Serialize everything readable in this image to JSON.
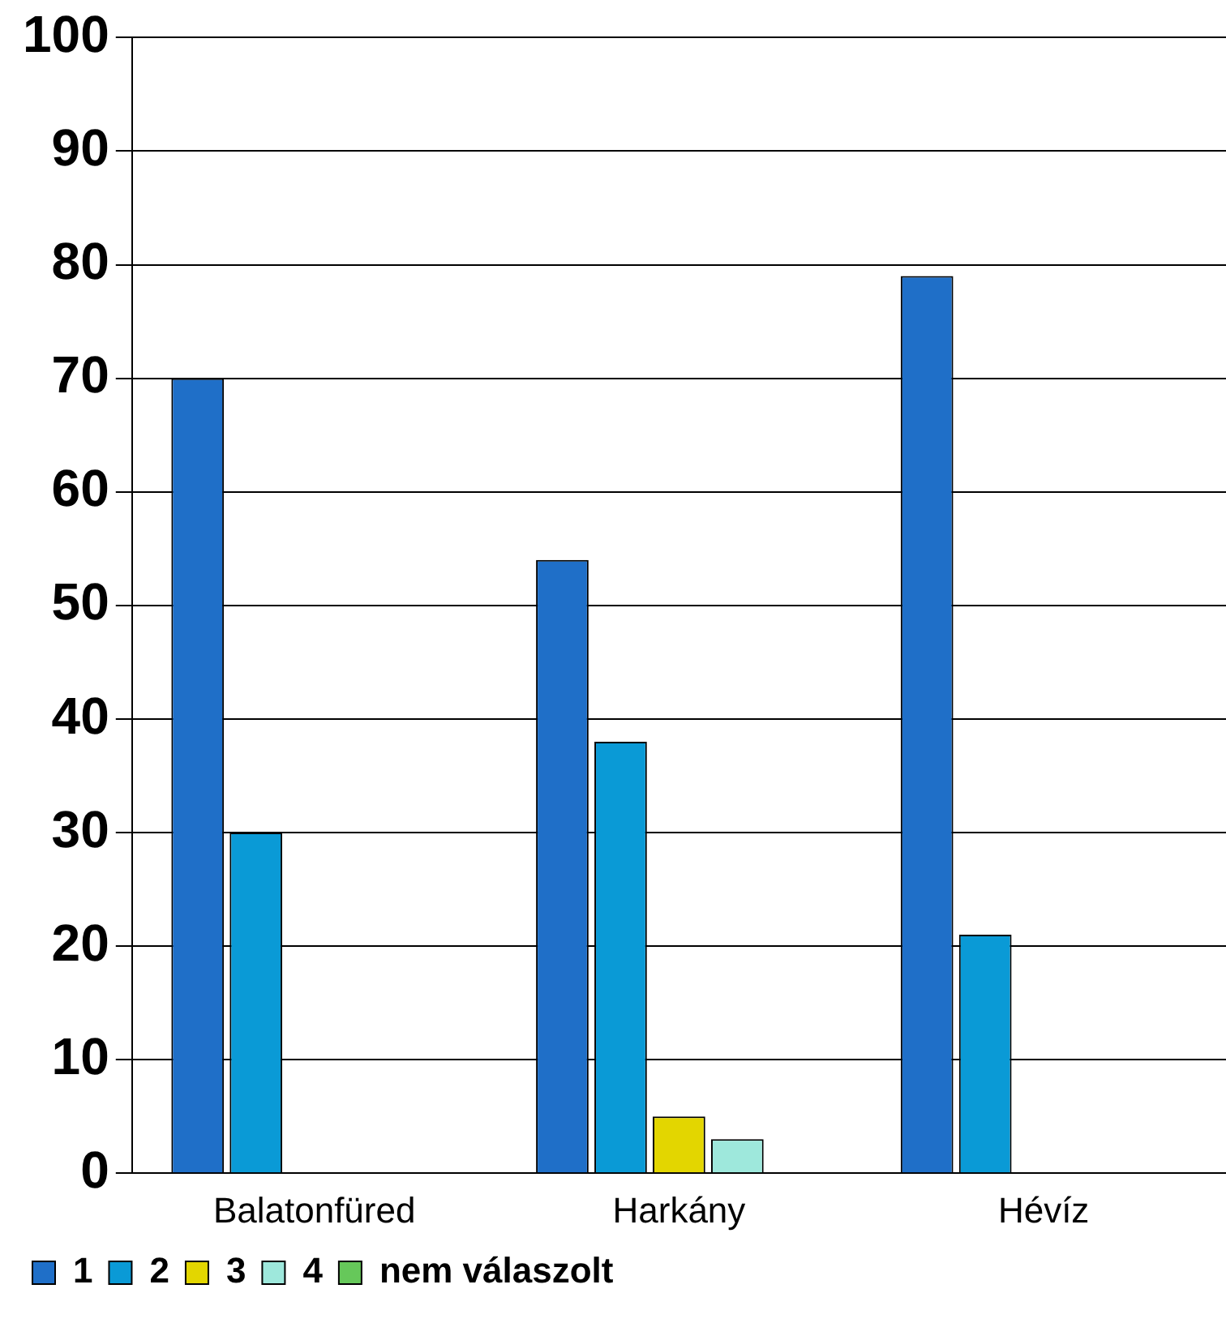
{
  "chart_data": {
    "type": "bar",
    "categories": [
      "Balatonfüred",
      "Harkány",
      "Hévíz"
    ],
    "series": [
      {
        "name": "1",
        "color": "#1f6fc8",
        "values": [
          70,
          54,
          79
        ]
      },
      {
        "name": "2",
        "color": "#0a9ad6",
        "values": [
          30,
          38,
          21
        ]
      },
      {
        "name": "3",
        "color": "#e3d600",
        "values": [
          0,
          5,
          0
        ]
      },
      {
        "name": "4",
        "color": "#9ee8dc",
        "values": [
          0,
          3,
          0
        ]
      },
      {
        "name": "nem válaszolt",
        "color": "#66c85a",
        "values": [
          0,
          0,
          0
        ]
      }
    ],
    "ylim": [
      0,
      100
    ],
    "yticks": [
      0,
      10,
      20,
      30,
      40,
      50,
      60,
      70,
      80,
      90,
      100
    ],
    "grid": "y",
    "legend": "bottom left"
  }
}
